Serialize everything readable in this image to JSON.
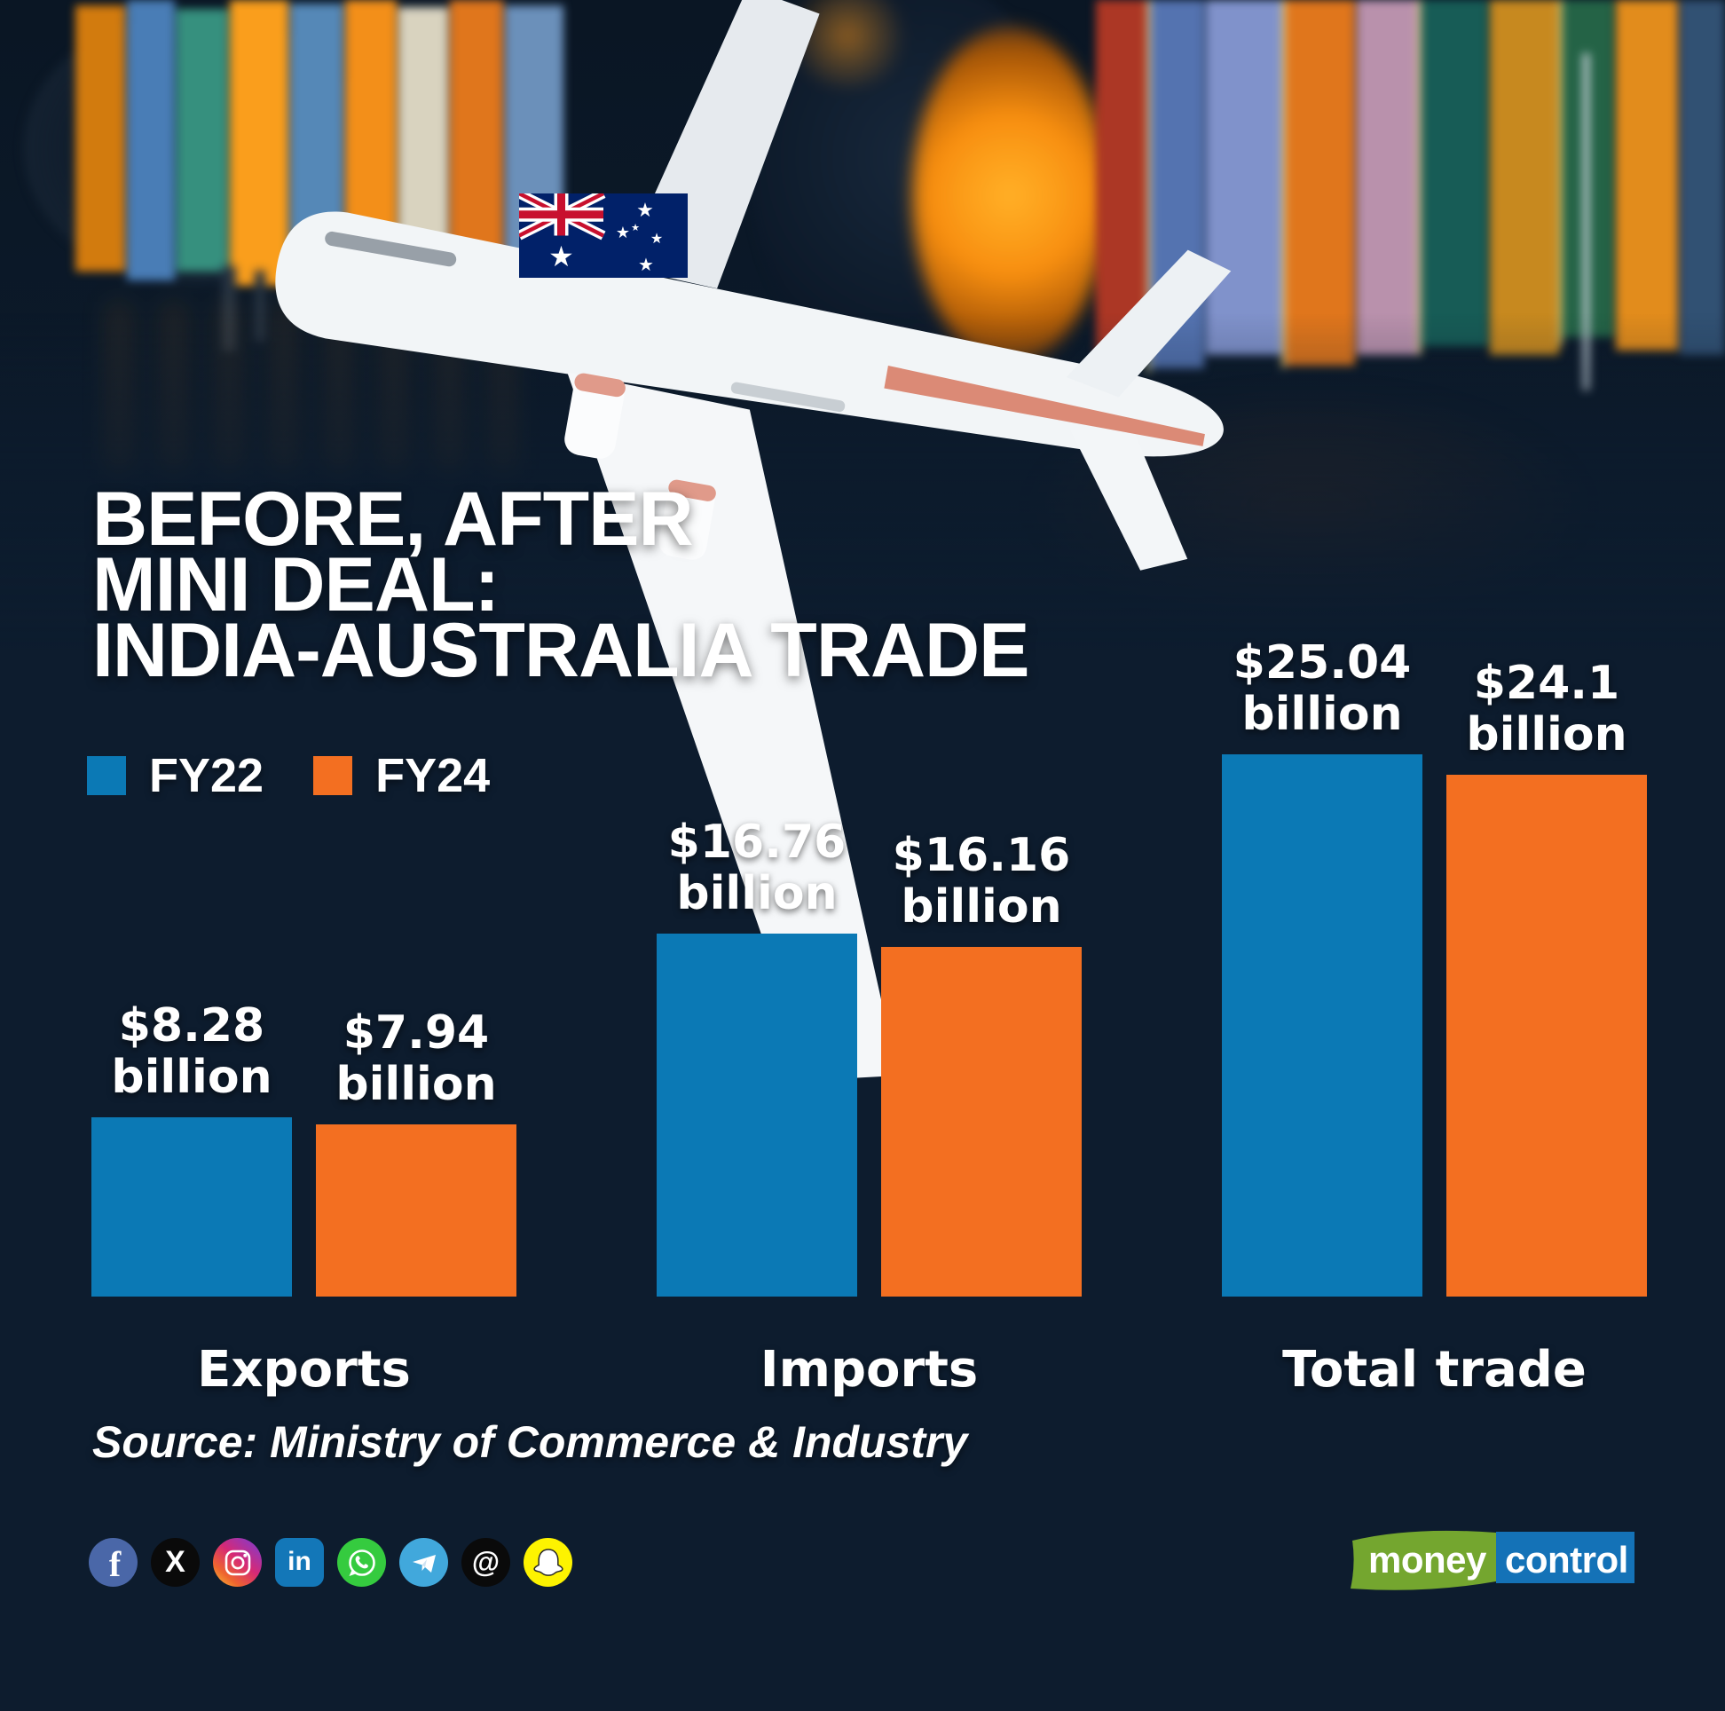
{
  "header": {
    "title_lines": [
      "BEFORE, AFTER",
      "MINI DEAL:",
      "INDIA-AUSTRALIA TRADE"
    ]
  },
  "legend": {
    "items": [
      {
        "label": "FY22",
        "color": "#0b79b5"
      },
      {
        "label": "FY24",
        "color": "#f36f21"
      }
    ]
  },
  "chart_data": {
    "type": "bar",
    "title": "BEFORE, AFTER MINI DEAL: INDIA-AUSTRALIA TRADE",
    "categories": [
      "Exports",
      "Imports",
      "Total trade"
    ],
    "unit": "USD billion",
    "unit_word": "billion",
    "series": [
      {
        "name": "FY22",
        "color": "#0b79b5",
        "values": [
          8.28,
          16.76,
          25.04
        ],
        "value_labels": [
          "$8.28",
          "$16.76",
          "$25.04"
        ]
      },
      {
        "name": "FY24",
        "color": "#f36f21",
        "values": [
          7.94,
          16.16,
          24.1
        ],
        "value_labels": [
          "$7.94",
          "$16.16",
          "$24.1"
        ]
      }
    ],
    "legend_position": "top-left",
    "grid": false
  },
  "source_note": "Source: Ministry of Commerce & Industry",
  "social_icons": [
    {
      "name": "facebook-icon",
      "glyph": "f",
      "bg": "#4a67a8"
    },
    {
      "name": "x-icon",
      "glyph": "X",
      "bg": "#0a0a0a"
    },
    {
      "name": "instagram-icon",
      "glyph": "",
      "bg": ""
    },
    {
      "name": "linkedin-icon",
      "glyph": "in",
      "bg": "#1377b8"
    },
    {
      "name": "whatsapp-icon",
      "glyph": "",
      "bg": "#35cb3f"
    },
    {
      "name": "telegram-icon",
      "glyph": "",
      "bg": "#41a8dc"
    },
    {
      "name": "threads-icon",
      "glyph": "@",
      "bg": "#0a0a0a"
    },
    {
      "name": "snapchat-icon",
      "glyph": "",
      "bg": "#fdf300"
    }
  ],
  "logo": {
    "text_green": "money",
    "text_blue": "control",
    "green_color": "#74a62f",
    "blue_color": "#1472b7"
  },
  "flag": {
    "name": "australia-flag",
    "colors": {
      "navy": "#012169",
      "red": "#c8102e",
      "white": "#ffffff"
    }
  }
}
